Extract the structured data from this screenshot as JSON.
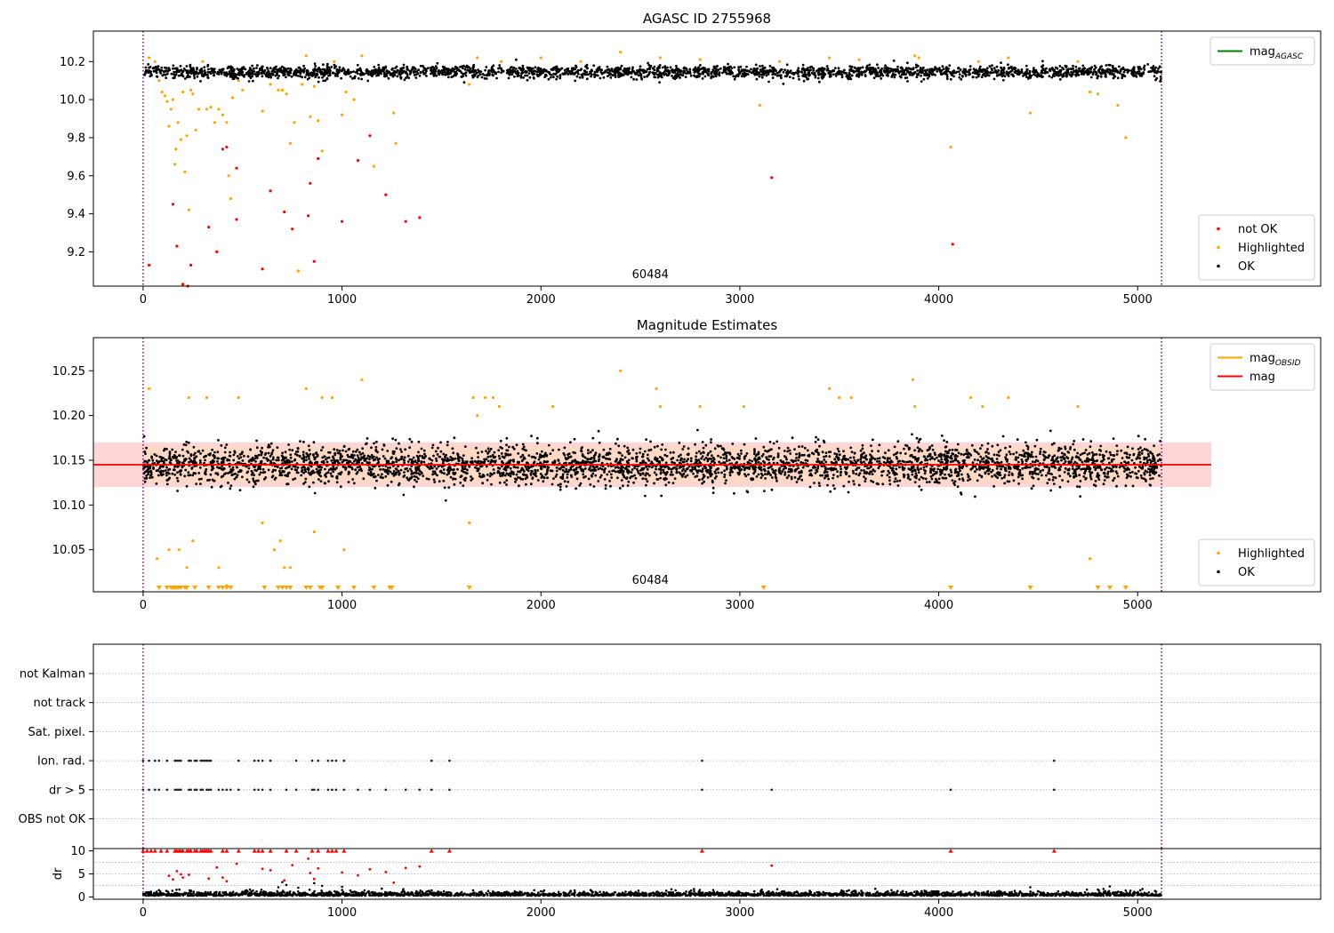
{
  "colors": {
    "ok": "#000000",
    "highlighted": "#ffa500",
    "not_ok": "#ff0000",
    "mag_agasc": "#008000",
    "mag_obsid": "#ffa500",
    "mag": "#ff0000",
    "band_outer": "#ffd6d6",
    "band_inner": "#ffd9c4",
    "boundary": "#800080"
  },
  "chart_data": [
    {
      "type": "scatter",
      "title": "AGASC ID 2755968",
      "xlabel": "",
      "ylabel": "",
      "xlim": [
        -250,
        5920
      ],
      "ylim": [
        9.02,
        10.36
      ],
      "xticks": [
        0,
        1000,
        2000,
        3000,
        4000,
        5000
      ],
      "yticks": [
        9.2,
        9.4,
        9.6,
        9.8,
        10.0,
        10.2
      ],
      "xtick_labels": [
        "0",
        "1000",
        "2000",
        "3000",
        "4000",
        "5000"
      ],
      "ytick_labels": [
        "9.2",
        "9.4",
        "9.6",
        "9.8",
        "10.0",
        "10.2"
      ],
      "vlines": [
        0,
        5120
      ],
      "annotation": {
        "text": "60484",
        "x": 2550
      },
      "legends": [
        {
          "placement": "upper-right",
          "entries": [
            {
              "label": "mag",
              "sub": "AGASC",
              "kind": "line",
              "color": "#008000"
            }
          ]
        },
        {
          "placement": "lower-right",
          "entries": [
            {
              "label": "not OK",
              "kind": "dot",
              "color": "#ff0000"
            },
            {
              "label": "Highlighted",
              "kind": "dot",
              "color": "#ffa500"
            },
            {
              "label": "OK",
              "kind": "dot",
              "color": "#000000"
            }
          ]
        }
      ],
      "ok_band": {
        "x_range": [
          0,
          5120
        ],
        "center": 10.145,
        "spread": 0.03,
        "count": 2600
      },
      "highlighted_points": [
        [
          30,
          10.22
        ],
        [
          60,
          10.2
        ],
        [
          80,
          10.1
        ],
        [
          95,
          10.04
        ],
        [
          110,
          10.02
        ],
        [
          120,
          9.99
        ],
        [
          130,
          9.86
        ],
        [
          140,
          9.95
        ],
        [
          150,
          10.0
        ],
        [
          160,
          9.66
        ],
        [
          165,
          9.74
        ],
        [
          175,
          9.88
        ],
        [
          190,
          9.79
        ],
        [
          200,
          10.04
        ],
        [
          210,
          9.62
        ],
        [
          220,
          9.81
        ],
        [
          230,
          9.42
        ],
        [
          240,
          10.05
        ],
        [
          250,
          10.03
        ],
        [
          265,
          9.84
        ],
        [
          280,
          9.95
        ],
        [
          300,
          10.2
        ],
        [
          320,
          9.95
        ],
        [
          340,
          9.96
        ],
        [
          360,
          9.88
        ],
        [
          380,
          9.95
        ],
        [
          400,
          9.92
        ],
        [
          420,
          9.88
        ],
        [
          430,
          9.6
        ],
        [
          440,
          9.48
        ],
        [
          450,
          10.01
        ],
        [
          480,
          10.1
        ],
        [
          500,
          10.05
        ],
        [
          600,
          9.94
        ],
        [
          640,
          10.08
        ],
        [
          680,
          10.05
        ],
        [
          700,
          10.05
        ],
        [
          720,
          10.03
        ],
        [
          740,
          9.77
        ],
        [
          760,
          9.88
        ],
        [
          780,
          9.1
        ],
        [
          800,
          10.08
        ],
        [
          820,
          10.23
        ],
        [
          840,
          9.91
        ],
        [
          860,
          10.07
        ],
        [
          880,
          9.89
        ],
        [
          900,
          9.73
        ],
        [
          960,
          10.2
        ],
        [
          1000,
          9.92
        ],
        [
          1020,
          10.04
        ],
        [
          1060,
          10.0
        ],
        [
          1100,
          10.23
        ],
        [
          1160,
          9.65
        ],
        [
          1260,
          9.93
        ],
        [
          1270,
          9.77
        ],
        [
          1640,
          10.08
        ],
        [
          1680,
          10.22
        ],
        [
          1800,
          10.2
        ],
        [
          2000,
          10.22
        ],
        [
          2200,
          10.2
        ],
        [
          2400,
          10.25
        ],
        [
          2600,
          10.22
        ],
        [
          2800,
          10.21
        ],
        [
          3100,
          9.97
        ],
        [
          3200,
          10.2
        ],
        [
          3450,
          10.22
        ],
        [
          3600,
          10.21
        ],
        [
          3880,
          10.23
        ],
        [
          3900,
          10.22
        ],
        [
          4060,
          9.75
        ],
        [
          4200,
          10.2
        ],
        [
          4350,
          10.22
        ],
        [
          4460,
          9.93
        ],
        [
          4700,
          10.2
        ],
        [
          4760,
          10.04
        ],
        [
          4800,
          10.03
        ],
        [
          4900,
          9.97
        ],
        [
          4940,
          9.8
        ]
      ],
      "not_ok_points": [
        [
          30,
          9.13
        ],
        [
          150,
          9.45
        ],
        [
          170,
          9.23
        ],
        [
          200,
          9.03
        ],
        [
          225,
          9.02
        ],
        [
          240,
          9.13
        ],
        [
          330,
          9.33
        ],
        [
          370,
          9.2
        ],
        [
          400,
          9.74
        ],
        [
          420,
          9.75
        ],
        [
          470,
          9.64
        ],
        [
          470,
          9.37
        ],
        [
          600,
          9.11
        ],
        [
          640,
          9.52
        ],
        [
          710,
          9.41
        ],
        [
          750,
          9.32
        ],
        [
          830,
          9.39
        ],
        [
          840,
          9.56
        ],
        [
          860,
          9.15
        ],
        [
          880,
          9.69
        ],
        [
          1000,
          9.36
        ],
        [
          1080,
          9.68
        ],
        [
          1140,
          9.81
        ],
        [
          1220,
          9.5
        ],
        [
          1320,
          9.36
        ],
        [
          1390,
          9.38
        ],
        [
          3160,
          9.59
        ],
        [
          4070,
          9.24
        ]
      ]
    },
    {
      "type": "scatter",
      "title": "Magnitude Estimates",
      "xlabel": "",
      "ylabel": "",
      "xlim": [
        -250,
        5920
      ],
      "ylim": [
        10.003,
        10.287
      ],
      "xticks": [
        0,
        1000,
        2000,
        3000,
        4000,
        5000
      ],
      "yticks": [
        10.05,
        10.1,
        10.15,
        10.2,
        10.25
      ],
      "xtick_labels": [
        "0",
        "1000",
        "2000",
        "3000",
        "4000",
        "5000"
      ],
      "ytick_labels": [
        "10.05",
        "10.10",
        "10.15",
        "10.20",
        "10.25"
      ],
      "vlines": [
        0,
        5120
      ],
      "annotation": {
        "text": "60484",
        "x": 2550
      },
      "mag_line": {
        "value": 10.145,
        "x_range": [
          -250,
          5370
        ]
      },
      "band_outer": [
        10.12,
        10.17
      ],
      "band_inner": [
        10.125,
        10.165
      ],
      "legends": [
        {
          "placement": "upper-right",
          "entries": [
            {
              "label": "mag",
              "sub": "OBSID",
              "kind": "line",
              "color": "#ffa500"
            },
            {
              "label": "mag",
              "kind": "line",
              "color": "#ff0000"
            }
          ]
        },
        {
          "placement": "lower-right",
          "entries": [
            {
              "label": "Highlighted",
              "kind": "dot",
              "color": "#ffa500"
            },
            {
              "label": "OK",
              "kind": "dot",
              "color": "#000000"
            }
          ]
        }
      ],
      "ok_band": {
        "x_range": [
          0,
          5120
        ],
        "center": 10.145,
        "spread": 0.02,
        "count": 3600
      },
      "highlighted_points": [
        [
          30,
          10.23
        ],
        [
          70,
          10.04
        ],
        [
          130,
          10.05
        ],
        [
          180,
          10.05
        ],
        [
          220,
          10.03
        ],
        [
          230,
          10.22
        ],
        [
          250,
          10.06
        ],
        [
          320,
          10.22
        ],
        [
          380,
          10.03
        ],
        [
          420,
          10.01
        ],
        [
          480,
          10.22
        ],
        [
          600,
          10.08
        ],
        [
          660,
          10.05
        ],
        [
          690,
          10.06
        ],
        [
          710,
          10.03
        ],
        [
          740,
          10.03
        ],
        [
          820,
          10.23
        ],
        [
          860,
          10.07
        ],
        [
          900,
          10.22
        ],
        [
          950,
          10.22
        ],
        [
          1010,
          10.05
        ],
        [
          1100,
          10.24
        ],
        [
          1640,
          10.08
        ],
        [
          1660,
          10.22
        ],
        [
          1680,
          10.2
        ],
        [
          1720,
          10.22
        ],
        [
          1760,
          10.22
        ],
        [
          1790,
          10.21
        ],
        [
          2060,
          10.21
        ],
        [
          2400,
          10.25
        ],
        [
          2580,
          10.23
        ],
        [
          2600,
          10.21
        ],
        [
          2800,
          10.21
        ],
        [
          3020,
          10.21
        ],
        [
          3450,
          10.23
        ],
        [
          3500,
          10.22
        ],
        [
          3560,
          10.22
        ],
        [
          3870,
          10.24
        ],
        [
          3880,
          10.21
        ],
        [
          4160,
          10.22
        ],
        [
          4220,
          10.21
        ],
        [
          4350,
          10.22
        ],
        [
          4700,
          10.21
        ],
        [
          4760,
          10.04
        ]
      ],
      "clipped_x": [
        80,
        120,
        140,
        150,
        160,
        170,
        180,
        190,
        210,
        220,
        260,
        330,
        380,
        400,
        420,
        440,
        610,
        680,
        700,
        720,
        740,
        820,
        840,
        890,
        900,
        980,
        1060,
        1160,
        1240,
        1250,
        1640,
        3120,
        4060,
        4460,
        4800,
        4860,
        4940
      ]
    },
    {
      "type": "scatter",
      "title": "",
      "xlabel": "",
      "ylabel": "",
      "xlim": [
        -250,
        5920
      ],
      "flags": [
        "not Kalman",
        "not track",
        "Sat. pixel.",
        "Ion. rad.",
        "dr > 5",
        "OBS not OK"
      ],
      "flag_points": {
        "Ion. rad.": [
          0,
          30,
          60,
          80,
          120,
          160,
          170,
          180,
          190,
          230,
          240,
          260,
          270,
          290,
          300,
          310,
          320,
          330,
          340,
          480,
          560,
          580,
          600,
          640,
          770,
          850,
          880,
          930,
          950,
          970,
          1010,
          1450,
          1540,
          2810,
          4580
        ],
        "dr > 5": [
          0,
          30,
          60,
          80,
          120,
          160,
          170,
          180,
          190,
          230,
          240,
          260,
          270,
          290,
          300,
          320,
          330,
          340,
          380,
          400,
          420,
          440,
          480,
          560,
          580,
          600,
          640,
          720,
          770,
          850,
          860,
          880,
          930,
          950,
          970,
          1010,
          1080,
          1140,
          1220,
          1320,
          1390,
          1450,
          1540,
          2810,
          3160,
          4060,
          4580
        ]
      },
      "vlines": [
        0,
        5120
      ]
    },
    {
      "type": "scatter",
      "title": "",
      "xlabel": "",
      "ylabel": "dr",
      "xlim": [
        -250,
        5920
      ],
      "ylim": [
        -0.5,
        10.5
      ],
      "yticks": [
        0,
        5,
        10
      ],
      "ytick_labels": [
        "0",
        "5",
        "10"
      ],
      "xticks": [
        0,
        1000,
        2000,
        3000,
        4000,
        5000
      ],
      "xtick_labels": [
        "0",
        "1000",
        "2000",
        "3000",
        "4000",
        "5000"
      ],
      "vlines": [
        0,
        5120
      ],
      "ok_band": {
        "x_range": [
          0,
          5120
        ],
        "center": 0.7,
        "spread": 0.45,
        "count": 2600
      },
      "not_ok_at_limit": [
        0,
        20,
        40,
        60,
        90,
        120,
        160,
        170,
        180,
        190,
        200,
        220,
        230,
        240,
        260,
        270,
        290,
        300,
        310,
        320,
        330,
        340,
        400,
        420,
        480,
        560,
        580,
        600,
        640,
        720,
        770,
        850,
        880,
        930,
        950,
        970,
        1010,
        1450,
        1540,
        2810,
        4060,
        4580
      ],
      "not_ok_points": [
        [
          130,
          4.6
        ],
        [
          150,
          3.8
        ],
        [
          170,
          5.6
        ],
        [
          190,
          4.9
        ],
        [
          200,
          4.2
        ],
        [
          230,
          4.8
        ],
        [
          330,
          4.0
        ],
        [
          370,
          6.4
        ],
        [
          400,
          4.2
        ],
        [
          420,
          3.4
        ],
        [
          470,
          7.2
        ],
        [
          600,
          6.1
        ],
        [
          640,
          5.8
        ],
        [
          710,
          3.6
        ],
        [
          750,
          6.9
        ],
        [
          830,
          8.3
        ],
        [
          840,
          5.2
        ],
        [
          860,
          3.9
        ],
        [
          880,
          6.2
        ],
        [
          1000,
          5.3
        ],
        [
          1080,
          4.7
        ],
        [
          1140,
          6.0
        ],
        [
          1220,
          5.4
        ],
        [
          1260,
          3.1
        ],
        [
          1320,
          6.3
        ],
        [
          1390,
          6.6
        ],
        [
          3160,
          6.8
        ]
      ],
      "ok_outliers": [
        [
          680,
          2.1
        ],
        [
          700,
          3.2
        ],
        [
          720,
          2.6
        ],
        [
          780,
          2.0
        ],
        [
          860,
          3.0
        ],
        [
          900,
          2.4
        ],
        [
          1000,
          2.2
        ],
        [
          1200,
          1.8
        ],
        [
          4460,
          2.1
        ],
        [
          4800,
          1.6
        ],
        [
          4860,
          2.3
        ]
      ]
    }
  ]
}
